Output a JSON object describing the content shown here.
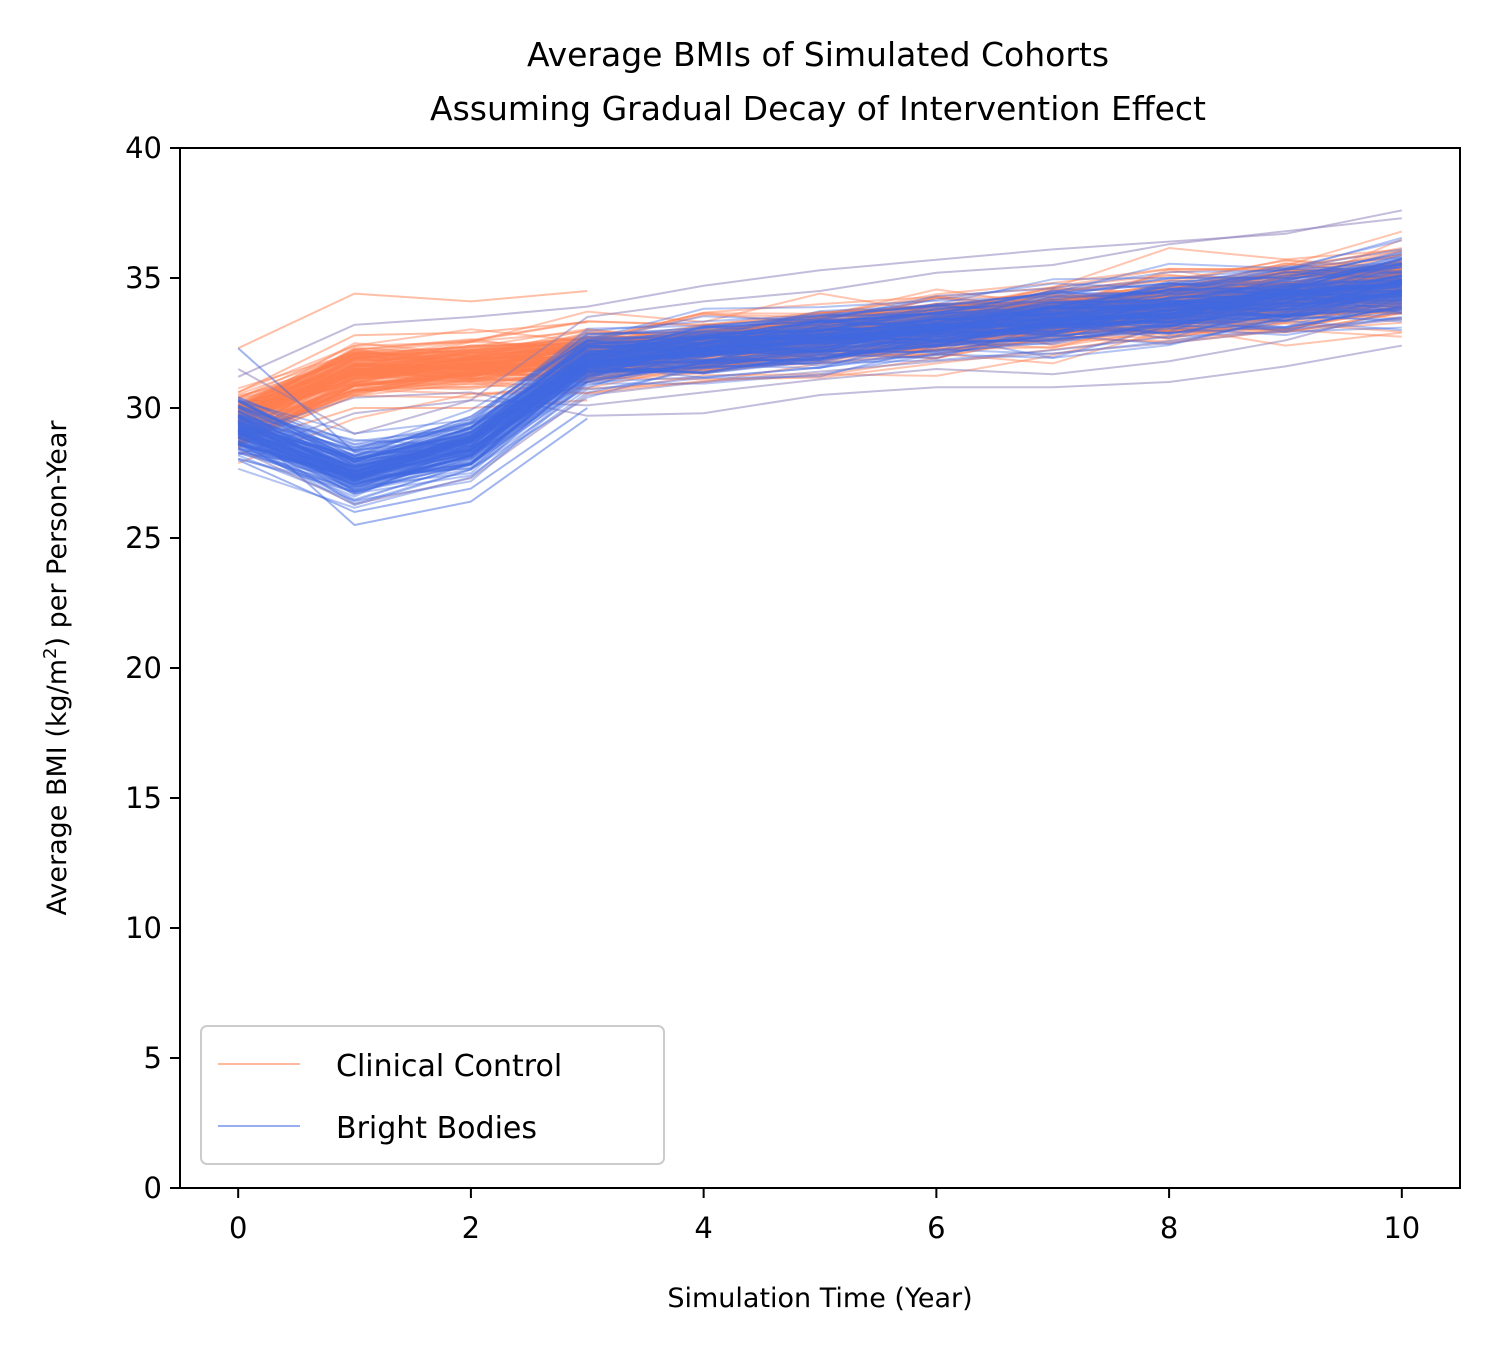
{
  "chart_data": {
    "type": "line",
    "title": [
      "Average BMIs of Simulated Cohorts",
      "Assuming Gradual Decay of Intervention Effect"
    ],
    "xlabel": "Simulation Time (Year)",
    "ylabel": {
      "prefix": "Average BMI (kg/m",
      "superscript": "2",
      "suffix": ") per Person-Year"
    },
    "xlim": [
      -0.5,
      10.5
    ],
    "ylim": [
      0,
      40
    ],
    "xticks": [
      0,
      2,
      4,
      6,
      8,
      10
    ],
    "yticks": [
      0,
      5,
      10,
      15,
      20,
      25,
      30,
      35,
      40
    ],
    "x": [
      0,
      1,
      2,
      3,
      4,
      5,
      6,
      7,
      8,
      9,
      10
    ],
    "legend_location": "lower-left",
    "colors": {
      "control": "#ff7f50",
      "bright": "#4169e1",
      "overlap": "#8a7ab8"
    },
    "series": [
      {
        "name": "Clinical Control",
        "color": "#ff7f50",
        "band_mean": [
          29.5,
          31.4,
          31.6,
          32.0,
          32.3,
          32.7,
          33.1,
          33.5,
          33.9,
          34.3,
          34.7
        ],
        "band_spread": [
          1.1,
          1.0,
          0.9,
          1.1,
          1.1,
          1.1,
          1.2,
          1.2,
          1.3,
          1.3,
          1.4
        ],
        "members": [
          [
            32.3,
            34.4,
            34.1,
            34.5
          ],
          [
            31.2,
            33.2,
            33.5,
            33.9,
            34.7,
            35.3,
            35.7,
            36.1,
            36.4,
            36.7,
            37.6
          ],
          [
            28.2,
            29.8,
            30.3,
            30.1,
            30.6,
            31.1,
            31.5,
            31.3,
            31.8,
            32.6,
            33.8
          ],
          [
            30.6,
            32.8,
            32.9,
            33.3
          ],
          [
            28.6,
            30.0,
            30.0,
            30.3
          ],
          [
            29.0,
            30.4,
            30.6,
            29.7,
            29.8,
            30.5,
            30.8,
            30.8,
            31.0,
            31.6,
            32.4
          ]
        ]
      },
      {
        "name": "Bright Bodies",
        "color": "#4169e1",
        "band_mean": [
          29.3,
          27.6,
          28.6,
          31.9,
          32.3,
          32.7,
          33.1,
          33.5,
          33.9,
          34.3,
          34.8
        ],
        "band_spread": [
          1.1,
          1.1,
          1.0,
          1.0,
          1.0,
          1.0,
          1.0,
          1.1,
          1.1,
          1.2,
          1.3
        ],
        "members": [
          [
            29.5,
            25.5,
            26.4,
            29.6
          ],
          [
            32.3,
            28.3,
            29.4,
            31.0
          ],
          [
            28.0,
            26.0,
            26.9,
            30.0
          ],
          [
            31.5,
            29.0,
            30.3,
            33.5,
            34.1,
            34.5,
            35.2,
            35.5,
            36.3,
            36.8,
            37.3
          ],
          [
            28.4,
            26.3,
            27.3,
            30.5,
            31.0,
            31.4,
            31.8,
            32.1,
            32.5,
            33.0,
            33.4
          ]
        ]
      }
    ]
  }
}
